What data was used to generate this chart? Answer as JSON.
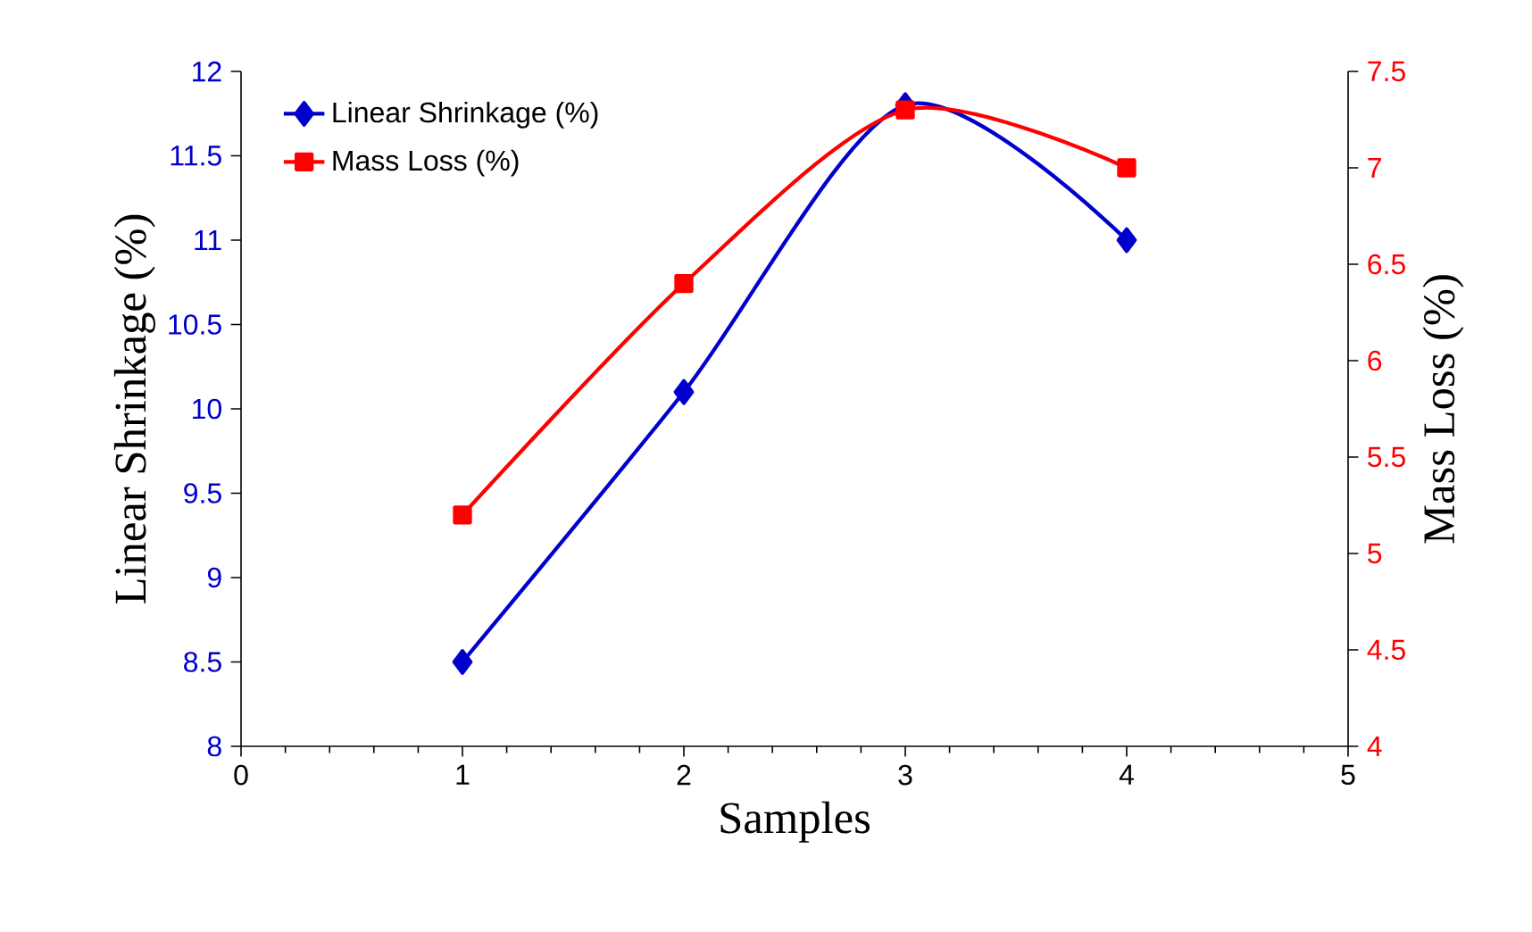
{
  "chart_data": {
    "type": "line",
    "xlabel": "Samples",
    "ylabel": "Linear Shrinkage  (%)",
    "y2label": "Mass Loss (%)",
    "x": [
      1,
      2,
      3,
      4
    ],
    "xlim": [
      0,
      5
    ],
    "xticks": [
      0,
      1,
      2,
      3,
      4,
      5
    ],
    "ylim": [
      8,
      12
    ],
    "yticks": [
      8,
      8.5,
      9,
      9.5,
      10,
      10.5,
      11,
      11.5,
      12
    ],
    "y2lim": [
      4,
      7.5
    ],
    "y2ticks": [
      4,
      4.5,
      5,
      5.5,
      6,
      6.5,
      7,
      7.5
    ],
    "legend": "top left",
    "line_style": "solid",
    "grid": false,
    "series": [
      {
        "name": "Linear Shrinkage (%)",
        "color": "#0000cc",
        "marker": "diamond",
        "values": [
          8.5,
          10.1,
          11.8,
          11.0
        ]
      },
      {
        "name": "Mass Loss (%)",
        "color": "#ff0000",
        "marker": "square",
        "axis": "y2",
        "values": [
          5.2,
          6.4,
          7.3,
          7.0
        ]
      }
    ]
  }
}
